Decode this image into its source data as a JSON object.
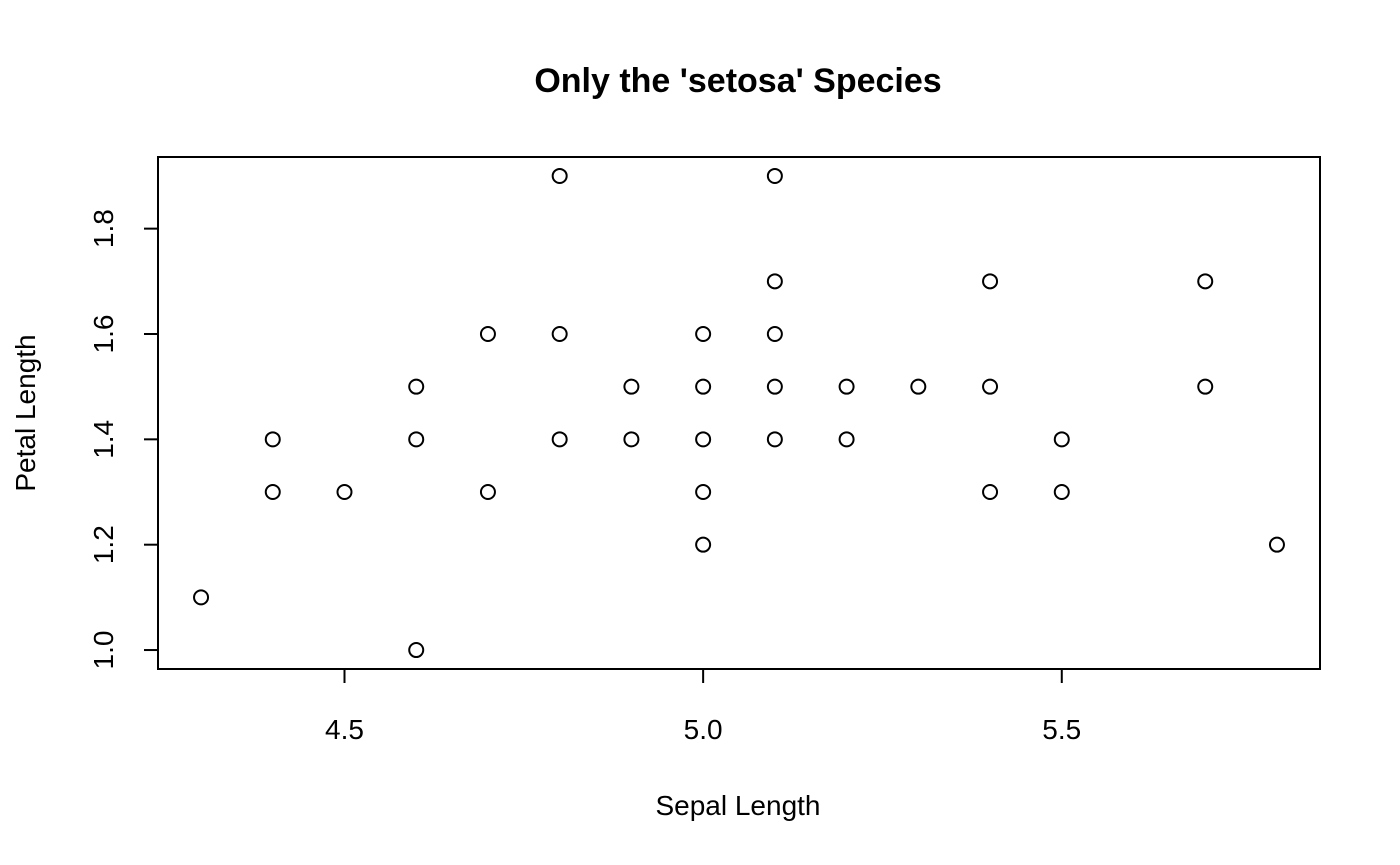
{
  "chart_data": {
    "type": "scatter",
    "title": "Only the 'setosa' Species",
    "xlabel": "Sepal Length",
    "ylabel": "Petal Length",
    "xlim": [
      4.24,
      5.86
    ],
    "ylim": [
      0.964,
      1.936
    ],
    "xticks": [
      4.5,
      5.0,
      5.5
    ],
    "xtick_labels": [
      "4.5",
      "5.0",
      "5.5"
    ],
    "yticks": [
      1.0,
      1.2,
      1.4,
      1.6,
      1.8
    ],
    "ytick_labels": [
      "1.0",
      "1.2",
      "1.4",
      "1.6",
      "1.8"
    ],
    "grid": false,
    "legend": "none",
    "marker": "open-circle",
    "points": [
      {
        "x": 4.3,
        "y": 1.1
      },
      {
        "x": 4.4,
        "y": 1.4
      },
      {
        "x": 4.4,
        "y": 1.3
      },
      {
        "x": 4.5,
        "y": 1.3
      },
      {
        "x": 4.6,
        "y": 1.5
      },
      {
        "x": 4.6,
        "y": 1.4
      },
      {
        "x": 4.6,
        "y": 1.0
      },
      {
        "x": 4.7,
        "y": 1.6
      },
      {
        "x": 4.7,
        "y": 1.3
      },
      {
        "x": 4.8,
        "y": 1.9
      },
      {
        "x": 4.8,
        "y": 1.6
      },
      {
        "x": 4.8,
        "y": 1.4
      },
      {
        "x": 4.9,
        "y": 1.5
      },
      {
        "x": 4.9,
        "y": 1.4
      },
      {
        "x": 5.0,
        "y": 1.6
      },
      {
        "x": 5.0,
        "y": 1.5
      },
      {
        "x": 5.0,
        "y": 1.4
      },
      {
        "x": 5.0,
        "y": 1.3
      },
      {
        "x": 5.0,
        "y": 1.2
      },
      {
        "x": 5.1,
        "y": 1.9
      },
      {
        "x": 5.1,
        "y": 1.7
      },
      {
        "x": 5.1,
        "y": 1.6
      },
      {
        "x": 5.1,
        "y": 1.5
      },
      {
        "x": 5.1,
        "y": 1.4
      },
      {
        "x": 5.2,
        "y": 1.5
      },
      {
        "x": 5.2,
        "y": 1.4
      },
      {
        "x": 5.3,
        "y": 1.5
      },
      {
        "x": 5.4,
        "y": 1.7
      },
      {
        "x": 5.4,
        "y": 1.5
      },
      {
        "x": 5.4,
        "y": 1.3
      },
      {
        "x": 5.5,
        "y": 1.4
      },
      {
        "x": 5.5,
        "y": 1.3
      },
      {
        "x": 5.7,
        "y": 1.7
      },
      {
        "x": 5.7,
        "y": 1.5
      },
      {
        "x": 5.8,
        "y": 1.2
      }
    ]
  }
}
